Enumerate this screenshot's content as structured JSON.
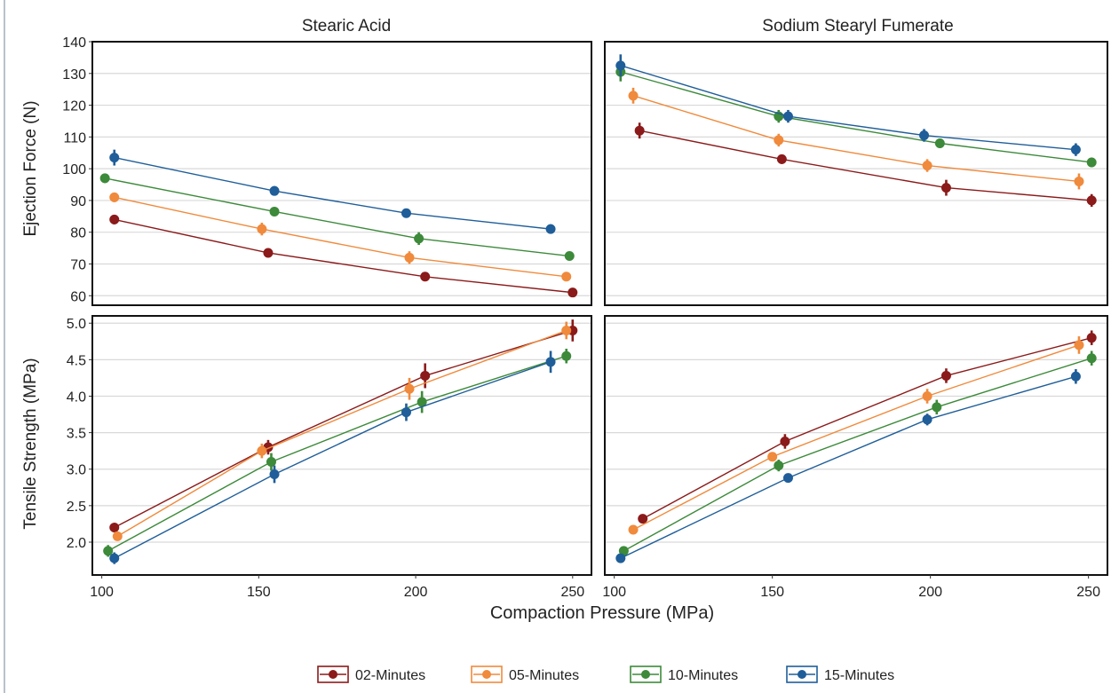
{
  "chart_data": {
    "type": "line",
    "facet_columns": [
      "Stearic Acid",
      "Sodium Stearyl Fumerate"
    ],
    "xlabel": "Compaction Pressure (MPa)",
    "xlim": [
      97,
      256
    ],
    "xticks": [
      100,
      150,
      200,
      250
    ],
    "grid": true,
    "legend_position": "bottom",
    "series_meta": [
      {
        "name": "02-Minutes",
        "color": "#8B1A1A"
      },
      {
        "name": "05-Minutes",
        "color": "#F08A3C"
      },
      {
        "name": "10-Minutes",
        "color": "#3C8A3A"
      },
      {
        "name": "15-Minutes",
        "color": "#1F5E99"
      }
    ],
    "rows": [
      {
        "ylabel": "Ejection Force (N)",
        "ylim": [
          57,
          140
        ],
        "yticks": [
          60,
          70,
          80,
          90,
          100,
          110,
          120,
          130,
          140
        ],
        "panels": [
          {
            "series": [
              {
                "name": "02-Minutes",
                "points": [
                  [
                    104,
                    84,
                    1.5
                  ],
                  [
                    153,
                    73.5,
                    1
                  ],
                  [
                    203,
                    66,
                    1
                  ],
                  [
                    250,
                    61,
                    1
                  ]
                ]
              },
              {
                "name": "05-Minutes",
                "points": [
                  [
                    104,
                    91,
                    1.5
                  ],
                  [
                    151,
                    81,
                    2
                  ],
                  [
                    198,
                    72,
                    2
                  ],
                  [
                    248,
                    66,
                    1
                  ]
                ]
              },
              {
                "name": "10-Minutes",
                "points": [
                  [
                    101,
                    97,
                    1.5
                  ],
                  [
                    155,
                    86.5,
                    1
                  ],
                  [
                    201,
                    78,
                    2
                  ],
                  [
                    249,
                    72.5,
                    1
                  ]
                ]
              },
              {
                "name": "15-Minutes",
                "points": [
                  [
                    104,
                    103.5,
                    2.5
                  ],
                  [
                    155,
                    93,
                    1.5
                  ],
                  [
                    197,
                    86,
                    1
                  ],
                  [
                    243,
                    81,
                    1.5
                  ]
                ]
              }
            ]
          },
          {
            "series": [
              {
                "name": "02-Minutes",
                "points": [
                  [
                    108,
                    112,
                    2.5
                  ],
                  [
                    153,
                    103,
                    1.5
                  ],
                  [
                    205,
                    94,
                    2.5
                  ],
                  [
                    251,
                    90,
                    2
                  ]
                ]
              },
              {
                "name": "05-Minutes",
                "points": [
                  [
                    106,
                    123,
                    2.5
                  ],
                  [
                    152,
                    109,
                    2
                  ],
                  [
                    199,
                    101,
                    2
                  ],
                  [
                    247,
                    96,
                    2.5
                  ]
                ]
              },
              {
                "name": "10-Minutes",
                "points": [
                  [
                    102,
                    130.5,
                    3
                  ],
                  [
                    152,
                    116.5,
                    2
                  ],
                  [
                    203,
                    108,
                    1.5
                  ],
                  [
                    251,
                    102,
                    1.5
                  ]
                ]
              },
              {
                "name": "15-Minutes",
                "points": [
                  [
                    102,
                    132.5,
                    3.5
                  ],
                  [
                    155,
                    116.5,
                    2
                  ],
                  [
                    198,
                    110.5,
                    2
                  ],
                  [
                    246,
                    106,
                    2
                  ]
                ]
              }
            ]
          }
        ]
      },
      {
        "ylabel": "Tensile Strength (MPa)",
        "ylim": [
          1.55,
          5.1
        ],
        "yticks": [
          2.0,
          2.5,
          3.0,
          3.5,
          4.0,
          4.5,
          5.0
        ],
        "ytick_labels": [
          "2.0",
          "2.5",
          "3.0",
          "3.5",
          "4.0",
          "4.5",
          "5.0"
        ],
        "panels": [
          {
            "series": [
              {
                "name": "02-Minutes",
                "points": [
                  [
                    104,
                    2.2,
                    0.05
                  ],
                  [
                    153,
                    3.3,
                    0.1
                  ],
                  [
                    203,
                    4.28,
                    0.17
                  ],
                  [
                    250,
                    4.9,
                    0.15
                  ]
                ]
              },
              {
                "name": "05-Minutes",
                "points": [
                  [
                    105,
                    2.08,
                    0.05
                  ],
                  [
                    151,
                    3.25,
                    0.1
                  ],
                  [
                    198,
                    4.1,
                    0.15
                  ],
                  [
                    248,
                    4.9,
                    0.12
                  ]
                ]
              },
              {
                "name": "10-Minutes",
                "points": [
                  [
                    102,
                    1.88,
                    0.08
                  ],
                  [
                    154,
                    3.1,
                    0.12
                  ],
                  [
                    202,
                    3.92,
                    0.15
                  ],
                  [
                    248,
                    4.55,
                    0.1
                  ]
                ]
              },
              {
                "name": "15-Minutes",
                "points": [
                  [
                    104,
                    1.78,
                    0.08
                  ],
                  [
                    155,
                    2.93,
                    0.12
                  ],
                  [
                    197,
                    3.78,
                    0.12
                  ],
                  [
                    243,
                    4.47,
                    0.15
                  ]
                ]
              }
            ]
          },
          {
            "series": [
              {
                "name": "02-Minutes",
                "points": [
                  [
                    109,
                    2.32,
                    0.06
                  ],
                  [
                    154,
                    3.38,
                    0.1
                  ],
                  [
                    205,
                    4.28,
                    0.1
                  ],
                  [
                    251,
                    4.8,
                    0.1
                  ]
                ]
              },
              {
                "name": "05-Minutes",
                "points": [
                  [
                    106,
                    2.17,
                    0.06
                  ],
                  [
                    150,
                    3.17,
                    0.06
                  ],
                  [
                    199,
                    4.0,
                    0.1
                  ],
                  [
                    247,
                    4.7,
                    0.12
                  ]
                ]
              },
              {
                "name": "10-Minutes",
                "points": [
                  [
                    103,
                    1.88,
                    0.06
                  ],
                  [
                    152,
                    3.05,
                    0.08
                  ],
                  [
                    202,
                    3.85,
                    0.1
                  ],
                  [
                    251,
                    4.52,
                    0.1
                  ]
                ]
              },
              {
                "name": "15-Minutes",
                "points": [
                  [
                    102,
                    1.78,
                    0.05
                  ],
                  [
                    155,
                    2.88,
                    0.06
                  ],
                  [
                    199,
                    3.68,
                    0.08
                  ],
                  [
                    246,
                    4.27,
                    0.1
                  ]
                ]
              }
            ]
          }
        ]
      }
    ]
  }
}
